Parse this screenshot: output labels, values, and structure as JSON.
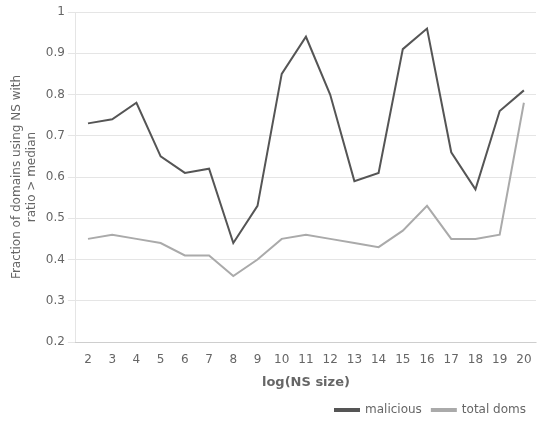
{
  "chart_data": {
    "type": "line",
    "xlabel": "log(NS size)",
    "ylabel": "Fraction of domains using NS with\nratio > median",
    "x": [
      2,
      3,
      4,
      5,
      6,
      7,
      8,
      9,
      10,
      11,
      12,
      13,
      14,
      15,
      16,
      17,
      18,
      19,
      20
    ],
    "series": [
      {
        "name": "malicious",
        "color": "#555555",
        "values": [
          0.73,
          0.74,
          0.78,
          0.65,
          0.61,
          0.62,
          0.44,
          0.53,
          0.85,
          0.94,
          0.8,
          0.59,
          0.61,
          0.91,
          0.96,
          0.66,
          0.57,
          0.76,
          0.81
        ]
      },
      {
        "name": "total doms",
        "color": "#aaaaaa",
        "values": [
          0.45,
          0.46,
          0.45,
          0.44,
          0.41,
          0.41,
          0.36,
          0.4,
          0.45,
          0.46,
          0.45,
          0.44,
          0.43,
          0.47,
          0.53,
          0.45,
          0.45,
          0.46,
          0.78
        ]
      }
    ],
    "xlim": [
      1.5,
      20.5
    ],
    "xticks": [
      2,
      3,
      4,
      5,
      6,
      7,
      8,
      9,
      10,
      11,
      12,
      13,
      14,
      15,
      16,
      17,
      18,
      19,
      20
    ],
    "ylim": [
      0.2,
      1.0
    ],
    "yticks": [
      0.2,
      0.3,
      0.4,
      0.5,
      0.6,
      0.7,
      0.8,
      0.9,
      1
    ],
    "grid": "y",
    "legend": "lower right"
  }
}
